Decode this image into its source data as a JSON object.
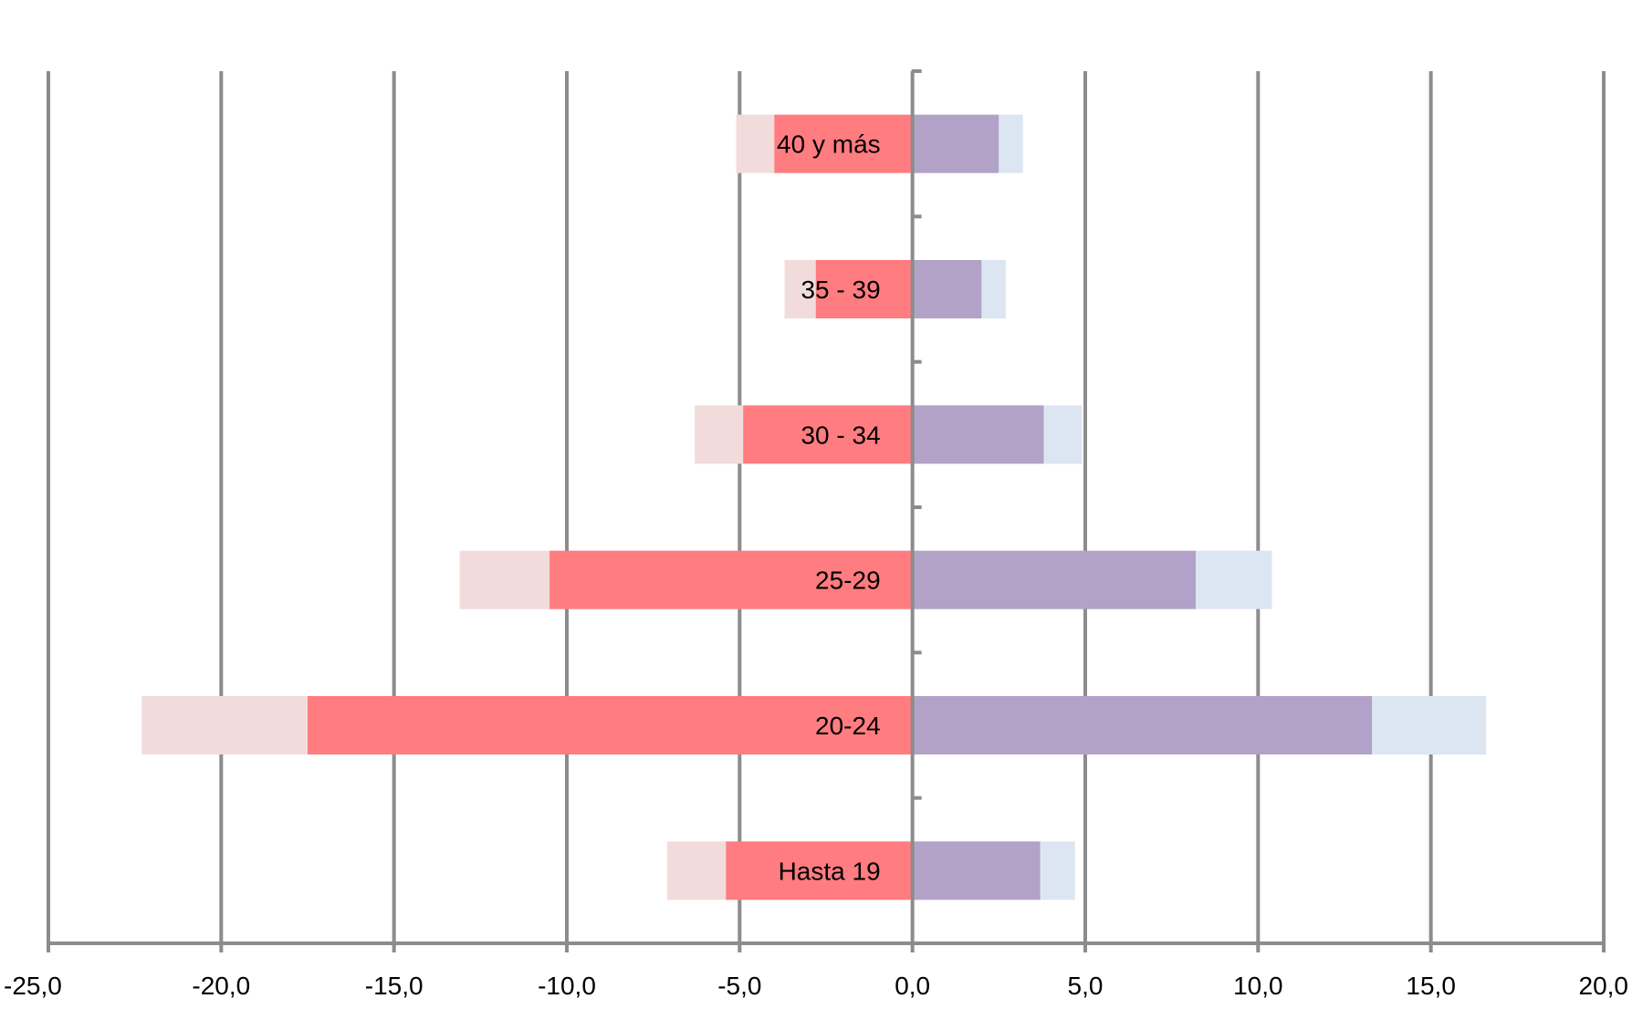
{
  "chart_data": {
    "type": "bar",
    "orientation": "horizontal",
    "layout": "population-pyramid",
    "stacked": true,
    "categories": [
      "40 y más",
      "35 - 39",
      "30 - 34",
      "25-29",
      "20-24",
      "Hasta 19"
    ],
    "series": [
      {
        "side": "left",
        "values": [
          -4.0,
          -2.8,
          -4.9,
          -10.5,
          -17.5,
          -5.4
        ],
        "color": "#FF7C80"
      },
      {
        "side": "left",
        "values": [
          -1.1,
          -0.9,
          -1.4,
          -2.6,
          -4.8,
          -1.7
        ],
        "color": "#F2DCDB"
      },
      {
        "side": "right",
        "values": [
          2.5,
          2.0,
          3.8,
          8.2,
          13.3,
          3.7
        ],
        "color": "#B2A2C7"
      },
      {
        "side": "right",
        "values": [
          0.7,
          0.7,
          1.1,
          2.2,
          3.3,
          1.0
        ],
        "color": "#DCE6F2"
      }
    ],
    "xlim": [
      -25,
      20
    ],
    "x_ticks": [
      -25,
      -20,
      -15,
      -10,
      -5,
      0,
      5,
      10,
      15,
      20
    ],
    "x_tick_labels": [
      "-25,0",
      "-20,0",
      "-15,0",
      "-10,0",
      "-5,0",
      "0,0",
      "5,0",
      "10,0",
      "15,0",
      "20,0"
    ],
    "grid": true,
    "legend": "none",
    "gridline_color": "#8C8C8C"
  }
}
